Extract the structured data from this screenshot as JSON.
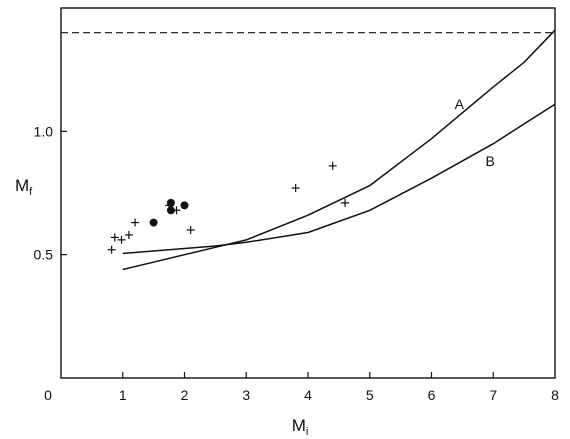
{
  "chart_data": {
    "type": "scatter",
    "title": "",
    "xlabel": "M",
    "xlabel_sub": "i",
    "ylabel": "M",
    "ylabel_sub": "f",
    "xlim": [
      0,
      8
    ],
    "ylim": [
      0,
      1.5
    ],
    "x_ticks": [
      {
        "value": 0,
        "label": "0"
      },
      {
        "value": 1,
        "label": "1"
      },
      {
        "value": 2,
        "label": "2"
      },
      {
        "value": 3,
        "label": "3"
      },
      {
        "value": 4,
        "label": "4"
      },
      {
        "value": 5,
        "label": "5"
      },
      {
        "value": 6,
        "label": "6"
      },
      {
        "value": 7,
        "label": "7"
      },
      {
        "value": 8,
        "label": "8"
      }
    ],
    "y_ticks": [
      {
        "value": 0.5,
        "label": "0.5"
      },
      {
        "value": 1.0,
        "label": "1.0"
      }
    ],
    "grid": false,
    "reference_line": {
      "y": 1.4,
      "style": "dashed"
    },
    "series": [
      {
        "marker": "cross",
        "x": [
          0.82,
          0.87,
          0.98,
          1.1,
          1.2,
          1.75,
          1.87,
          2.1,
          3.8,
          4.4,
          4.6
        ],
        "y": [
          0.52,
          0.57,
          0.56,
          0.58,
          0.63,
          0.7,
          0.68,
          0.6,
          0.77,
          0.86,
          0.71
        ]
      },
      {
        "marker": "filled-circle",
        "x": [
          1.5,
          1.78,
          1.78,
          2.0
        ],
        "y": [
          0.63,
          0.71,
          0.68,
          0.7
        ]
      },
      {
        "name": "A",
        "type": "line",
        "x": [
          0,
          1,
          2,
          2.5,
          3,
          4,
          5,
          6,
          7,
          7.5,
          8
        ],
        "y": [
          null,
          0.44,
          0.5,
          0.53,
          0.56,
          0.66,
          0.78,
          0.97,
          1.18,
          1.28,
          1.41
        ]
      },
      {
        "name": "B",
        "type": "line",
        "x": [
          0,
          1,
          2,
          2.5,
          3,
          4,
          5,
          6,
          7,
          7.5,
          8
        ],
        "y": [
          null,
          0.505,
          0.525,
          0.535,
          0.55,
          0.59,
          0.68,
          0.81,
          0.95,
          1.03,
          1.11
        ]
      }
    ],
    "curve_labels": [
      {
        "text": "A",
        "x": 6.45,
        "y": 1.09
      },
      {
        "text": "B",
        "x": 6.95,
        "y": 0.86
      }
    ]
  }
}
